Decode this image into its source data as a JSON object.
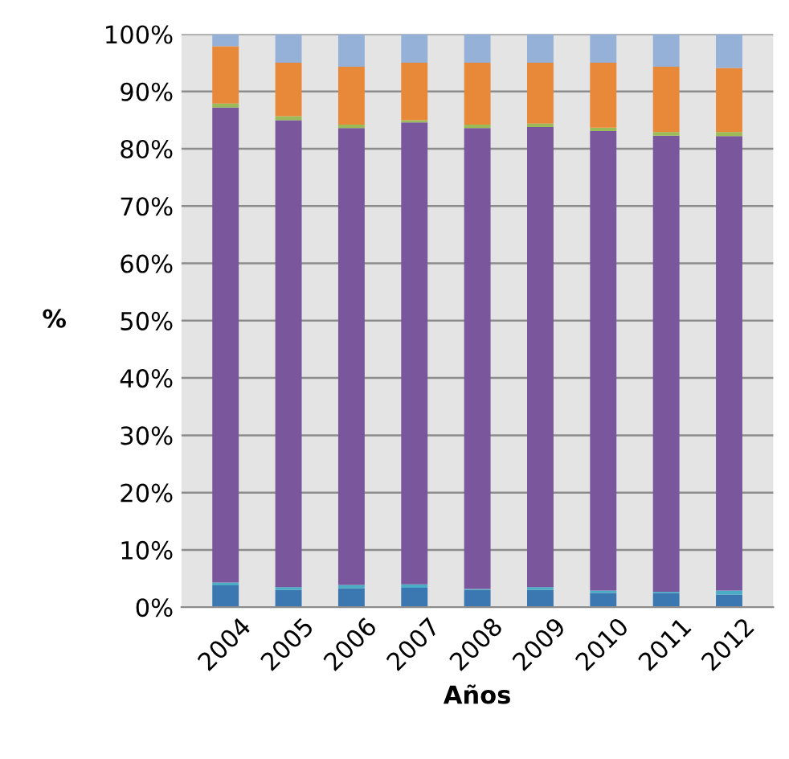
{
  "chart_data": {
    "type": "bar",
    "stacked": true,
    "xlabel": "Años",
    "ylabel": "%",
    "categories": [
      "2004",
      "2005",
      "2006",
      "2007",
      "2008",
      "2009",
      "2010",
      "2011",
      "2012"
    ],
    "series": [
      {
        "color": "#3b77b0",
        "values": [
          3.8,
          3.0,
          3.3,
          3.4,
          3.0,
          3.0,
          2.5,
          2.5,
          2.2
        ]
      },
      {
        "color": "#4bacc6",
        "values": [
          0.5,
          0.5,
          0.6,
          0.6,
          0.2,
          0.5,
          0.4,
          0.2,
          0.7
        ]
      },
      {
        "color": "#7a569c",
        "values": [
          82.9,
          81.5,
          79.7,
          80.6,
          80.4,
          80.3,
          80.2,
          79.6,
          79.3
        ]
      },
      {
        "color": "#9bbb59",
        "values": [
          0.7,
          0.7,
          0.6,
          0.4,
          0.6,
          0.6,
          0.6,
          0.6,
          0.7
        ]
      },
      {
        "color": "#e8893a",
        "values": [
          10.0,
          9.3,
          10.1,
          10.0,
          10.8,
          10.6,
          11.3,
          11.4,
          11.2
        ]
      },
      {
        "color": "#95b1d8",
        "values": [
          2.1,
          5.0,
          5.7,
          5.0,
          5.0,
          5.0,
          5.0,
          5.7,
          5.9
        ]
      }
    ],
    "ylim": [
      0,
      100
    ],
    "yticks": [
      {
        "value": 0,
        "label": "0%"
      },
      {
        "value": 10,
        "label": "10%"
      },
      {
        "value": 20,
        "label": "20%"
      },
      {
        "value": 30,
        "label": "30%"
      },
      {
        "value": 40,
        "label": "40%"
      },
      {
        "value": 50,
        "label": "50%"
      },
      {
        "value": 60,
        "label": "60%"
      },
      {
        "value": 70,
        "label": "70%"
      },
      {
        "value": 80,
        "label": "80%"
      },
      {
        "value": 90,
        "label": "90%"
      },
      {
        "value": 100,
        "label": "100%"
      }
    ],
    "grid": "y"
  }
}
